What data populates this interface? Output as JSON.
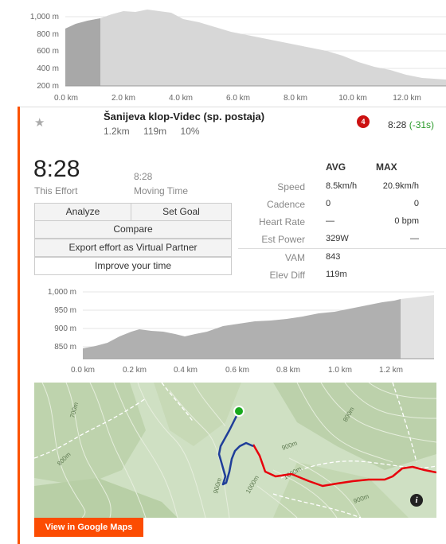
{
  "top_chart": {
    "y_ticks": [
      "1,000 m",
      "800 m",
      "600 m",
      "400 m",
      "200 m"
    ],
    "x_ticks": [
      "0.0 km",
      "2.0 km",
      "4.0 km",
      "6.0 km",
      "8.0 km",
      "10.0 km",
      "12.0 km"
    ]
  },
  "segment": {
    "name": "Šanijeva klop-Videc (sp. postaja)",
    "distance": "1.2km",
    "elev_gain": "119m",
    "grade": "10%",
    "rank": "4",
    "time": "8:28",
    "time_diff": "(-31s)"
  },
  "effort": {
    "time": "8:28",
    "time_label": "This Effort",
    "moving_time": "8:28",
    "moving_label": "Moving Time"
  },
  "buttons": {
    "analyze": "Analyze",
    "set_goal": "Set Goal",
    "compare": "Compare",
    "export": "Export effort as Virtual Partner",
    "improve": "Improve your time"
  },
  "stats": {
    "avg_header": "AVG",
    "max_header": "MAX",
    "rows": [
      {
        "label": "Speed",
        "avg": "8.5km/h",
        "max": "20.9km/h"
      },
      {
        "label": "Cadence",
        "avg": "0",
        "max": "0"
      },
      {
        "label": "Heart Rate",
        "avg": "—",
        "max": "0 bpm"
      },
      {
        "label": "Est Power",
        "avg": "329W",
        "max": "—"
      },
      {
        "label": "VAM",
        "avg": "843",
        "max": ""
      },
      {
        "label": "Elev Diff",
        "avg": "119m",
        "max": ""
      }
    ]
  },
  "segment_chart": {
    "y_ticks": [
      "1,000 m",
      "950 m",
      "900 m",
      "850 m"
    ],
    "x_ticks": [
      "0.0 km",
      "0.2 km",
      "0.4 km",
      "0.6 km",
      "0.8 km",
      "1.0 km",
      "1.2 km"
    ]
  },
  "map": {
    "contour_labels": [
      "700m",
      "800m",
      "800m",
      "900m",
      "900m",
      "1000m",
      "1000m",
      "900m"
    ],
    "google_maps_label": "View in Google Maps",
    "info_label": "i"
  },
  "colors": {
    "accent": "#fc5200",
    "route_blue": "#1f3e99",
    "route_red": "#e8000b",
    "start_green": "#18a91d",
    "rank_badge": "#cc1111",
    "diff_green": "#2a9a2a"
  }
}
